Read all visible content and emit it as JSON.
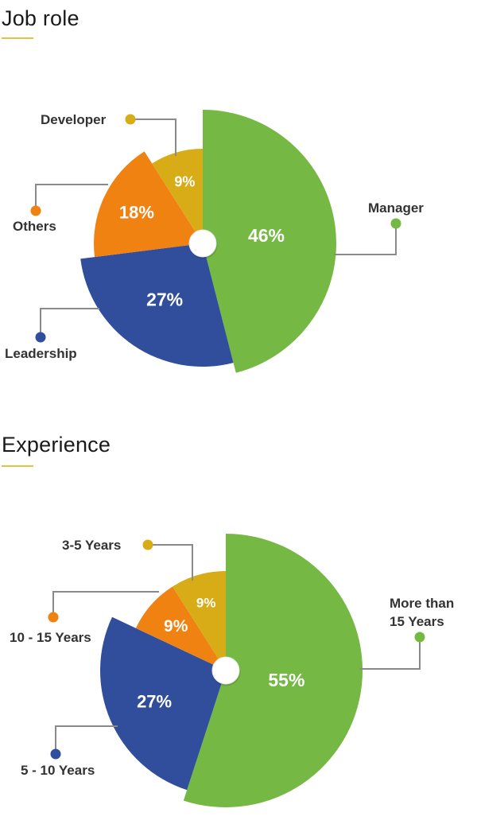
{
  "sections": [
    {
      "title": "Job role",
      "accent": "#e8c143"
    },
    {
      "title": "Experience",
      "accent": "#e8c143"
    }
  ],
  "chart_data": [
    {
      "type": "pie",
      "title": "Job role",
      "slices": [
        {
          "label": "Manager",
          "value": 46,
          "display": "46%",
          "color": "#75b844"
        },
        {
          "label": "Leadership",
          "value": 27,
          "display": "27%",
          "color": "#304e9b"
        },
        {
          "label": "Others",
          "value": 18,
          "display": "18%",
          "color": "#ef8211"
        },
        {
          "label": "Developer",
          "value": 9,
          "display": "9%",
          "color": "#d8ac16"
        }
      ]
    },
    {
      "type": "pie",
      "title": "Experience",
      "slices": [
        {
          "label": "More than 15 Years",
          "label_lines": [
            "More than",
            "15 Years"
          ],
          "value": 55,
          "display": "55%",
          "color": "#75b844"
        },
        {
          "label": "5 - 10 Years",
          "value": 27,
          "display": "27%",
          "color": "#304e9b"
        },
        {
          "label": "10 - 15 Years",
          "value": 9,
          "display": "9%",
          "color": "#ef8211"
        },
        {
          "label": "3-5 Years",
          "value": 9,
          "display": "9%",
          "color": "#d8ac16"
        }
      ]
    }
  ]
}
